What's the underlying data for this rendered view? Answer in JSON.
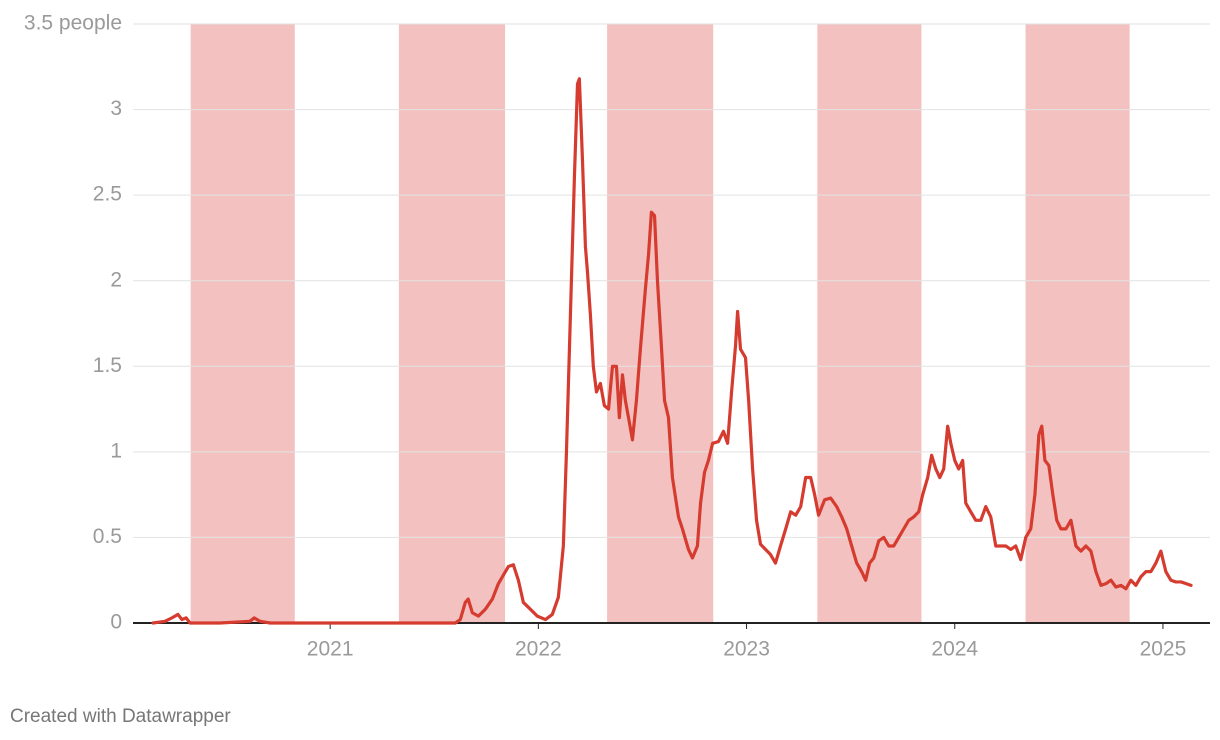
{
  "chart_data": {
    "type": "line",
    "xlim": [
      2020.053,
      2025.226
    ],
    "ylim": [
      0,
      3.5
    ],
    "xticks": [
      2021,
      2022,
      2023,
      2024,
      2025
    ],
    "yticks": [
      0,
      0.5,
      1,
      1.5,
      2,
      2.5,
      3,
      {
        "value": 3.5,
        "label": "3.5 people"
      }
    ],
    "grid": true,
    "band_color": "#f3c2c0",
    "bands": [
      [
        2020.33,
        2020.83
      ],
      [
        2021.33,
        2021.84
      ],
      [
        2022.33,
        2022.84
      ],
      [
        2023.34,
        2023.84
      ],
      [
        2024.34,
        2024.84
      ]
    ],
    "series": [
      {
        "color": "#d63b2f",
        "x": [
          2020.149,
          2020.207,
          2020.24,
          2020.269,
          2020.288,
          2020.308,
          2020.327,
          2020.471,
          2020.615,
          2020.635,
          2020.663,
          2020.712,
          2020.856,
          2021.096,
          2021.337,
          2021.529,
          2021.601,
          2021.625,
          2021.649,
          2021.663,
          2021.683,
          2021.712,
          2021.745,
          2021.779,
          2021.808,
          2021.832,
          2021.856,
          2021.88,
          2021.904,
          2021.928,
          2021.962,
          2021.995,
          2022.034,
          2022.067,
          2022.096,
          2022.12,
          2022.135,
          2022.154,
          2022.173,
          2022.188,
          2022.197,
          2022.212,
          2022.226,
          2022.236,
          2022.25,
          2022.264,
          2022.279,
          2022.298,
          2022.317,
          2022.337,
          2022.356,
          2022.375,
          2022.389,
          2022.404,
          2022.418,
          2022.433,
          2022.452,
          2022.471,
          2022.49,
          2022.514,
          2022.529,
          2022.543,
          2022.558,
          2022.572,
          2022.587,
          2022.606,
          2022.625,
          2022.644,
          2022.673,
          2022.692,
          2022.721,
          2022.74,
          2022.764,
          2022.779,
          2022.798,
          2022.817,
          2022.837,
          2022.865,
          2022.889,
          2022.909,
          2022.928,
          2022.947,
          2022.957,
          2022.971,
          2022.995,
          2023.01,
          2023.029,
          2023.048,
          2023.067,
          2023.091,
          2023.115,
          2023.139,
          2023.163,
          2023.188,
          2023.212,
          2023.236,
          2023.26,
          2023.284,
          2023.308,
          2023.327,
          2023.346,
          2023.375,
          2023.404,
          2023.433,
          2023.457,
          2023.481,
          2023.505,
          2023.529,
          2023.553,
          2023.572,
          2023.591,
          2023.611,
          2023.635,
          2023.659,
          2023.683,
          2023.707,
          2023.731,
          2023.755,
          2023.779,
          2023.803,
          2023.827,
          2023.846,
          2023.87,
          2023.889,
          2023.909,
          2023.928,
          2023.947,
          2023.966,
          2023.981,
          2024.0,
          2024.019,
          2024.038,
          2024.053,
          2024.077,
          2024.101,
          2024.125,
          2024.149,
          2024.173,
          2024.197,
          2024.221,
          2024.245,
          2024.269,
          2024.293,
          2024.317,
          2024.341,
          2024.365,
          2024.385,
          2024.404,
          2024.418,
          2024.433,
          2024.452,
          2024.471,
          2024.49,
          2024.51,
          2024.534,
          2024.558,
          2024.582,
          2024.606,
          2024.63,
          2024.654,
          2024.678,
          2024.702,
          2024.726,
          2024.75,
          2024.774,
          2024.798,
          2024.822,
          2024.846,
          2024.87,
          2024.894,
          2024.918,
          2024.942,
          2024.966,
          2024.99,
          2025.014,
          2025.038,
          2025.062,
          2025.087,
          2025.111,
          2025.135
        ],
        "values": [
          0,
          0.01,
          0.03,
          0.05,
          0.02,
          0.03,
          0,
          0,
          0.01,
          0.03,
          0.01,
          0,
          0,
          0,
          0,
          0,
          0,
          0.02,
          0.12,
          0.14,
          0.06,
          0.04,
          0.08,
          0.14,
          0.23,
          0.28,
          0.33,
          0.34,
          0.25,
          0.12,
          0.08,
          0.04,
          0.02,
          0.05,
          0.15,
          0.45,
          1.0,
          1.8,
          2.6,
          3.15,
          3.18,
          2.7,
          2.2,
          2.05,
          1.8,
          1.5,
          1.35,
          1.4,
          1.27,
          1.25,
          1.5,
          1.5,
          1.2,
          1.45,
          1.3,
          1.2,
          1.07,
          1.3,
          1.6,
          1.95,
          2.15,
          2.4,
          2.38,
          2.0,
          1.7,
          1.3,
          1.2,
          0.85,
          0.62,
          0.55,
          0.43,
          0.38,
          0.45,
          0.7,
          0.88,
          0.95,
          1.05,
          1.06,
          1.12,
          1.05,
          1.35,
          1.62,
          1.82,
          1.6,
          1.55,
          1.3,
          0.9,
          0.6,
          0.46,
          0.43,
          0.4,
          0.35,
          0.45,
          0.55,
          0.65,
          0.63,
          0.68,
          0.85,
          0.85,
          0.75,
          0.63,
          0.72,
          0.73,
          0.68,
          0.62,
          0.55,
          0.45,
          0.35,
          0.3,
          0.25,
          0.35,
          0.38,
          0.48,
          0.5,
          0.45,
          0.45,
          0.5,
          0.55,
          0.6,
          0.62,
          0.65,
          0.75,
          0.85,
          0.98,
          0.9,
          0.85,
          0.9,
          1.15,
          1.05,
          0.95,
          0.9,
          0.95,
          0.7,
          0.65,
          0.6,
          0.6,
          0.68,
          0.62,
          0.45,
          0.45,
          0.45,
          0.43,
          0.45,
          0.37,
          0.5,
          0.55,
          0.75,
          1.1,
          1.15,
          0.95,
          0.92,
          0.75,
          0.6,
          0.55,
          0.55,
          0.6,
          0.45,
          0.42,
          0.45,
          0.42,
          0.3,
          0.22,
          0.23,
          0.25,
          0.21,
          0.22,
          0.2,
          0.25,
          0.22,
          0.27,
          0.3,
          0.3,
          0.35,
          0.42,
          0.3,
          0.25,
          0.24,
          0.24,
          0.23,
          0.22
        ]
      }
    ]
  },
  "footer": "Created with Datawrapper"
}
